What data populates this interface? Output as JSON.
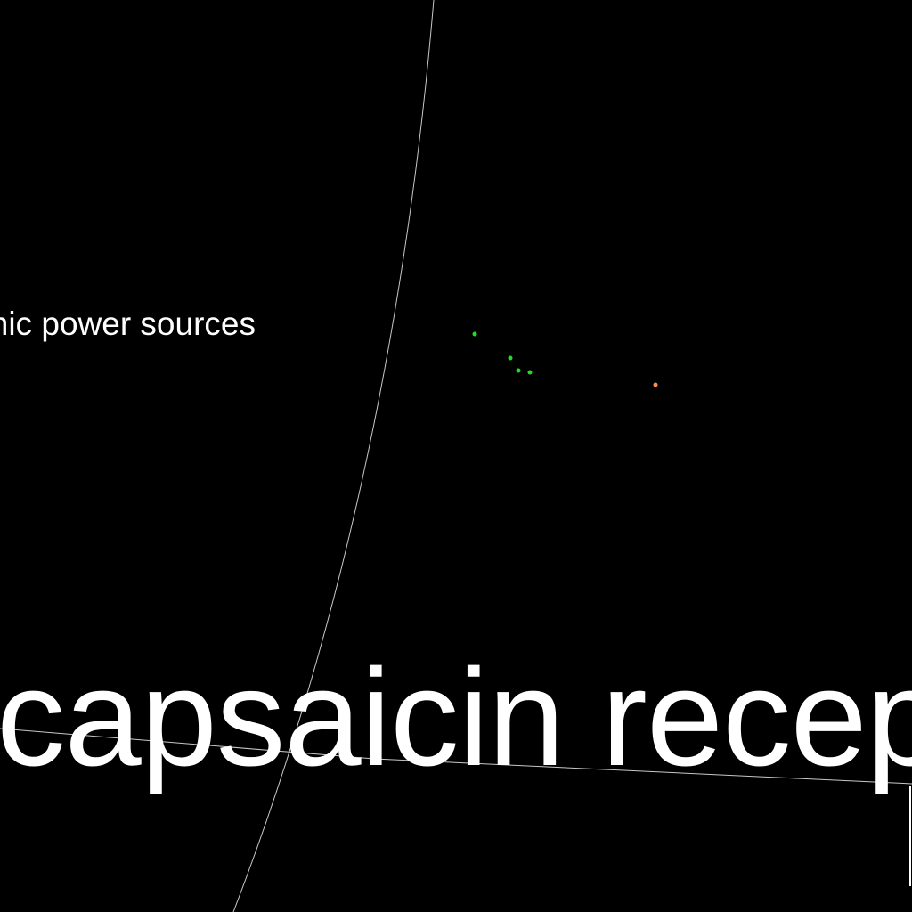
{
  "map": {
    "background": "#000000",
    "line_color": "#c8c8c8",
    "labels": {
      "small": "ionic power sources",
      "large": "capsaicin recep"
    },
    "markers": [
      {
        "name": "green-marker-1",
        "color": "#22dd22"
      },
      {
        "name": "green-marker-2",
        "color": "#22dd22"
      },
      {
        "name": "green-marker-3",
        "color": "#22dd22"
      },
      {
        "name": "green-marker-4",
        "color": "#22dd22"
      },
      {
        "name": "orange-marker",
        "color": "#ff8c55"
      }
    ]
  }
}
